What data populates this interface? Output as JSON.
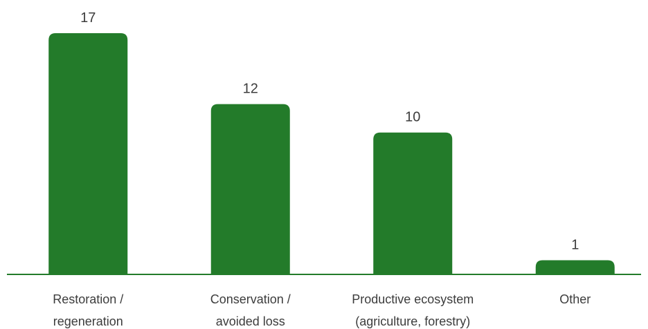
{
  "chart_data": {
    "type": "bar",
    "categories": [
      [
        "Restoration /",
        "regeneration"
      ],
      [
        "Conservation /",
        "avoided loss"
      ],
      [
        "Productive ecosystem",
        "(agriculture, forestry)"
      ],
      [
        "Other"
      ]
    ],
    "values": [
      17,
      12,
      10,
      1
    ],
    "title": "",
    "xlabel": "",
    "ylabel": "",
    "ylim": [
      0,
      17
    ],
    "grid": false,
    "legend": "none",
    "data_labels": true
  },
  "colors": {
    "bar": "#237b2a",
    "axis": "#237b2a",
    "text": "#3c3c3c"
  }
}
